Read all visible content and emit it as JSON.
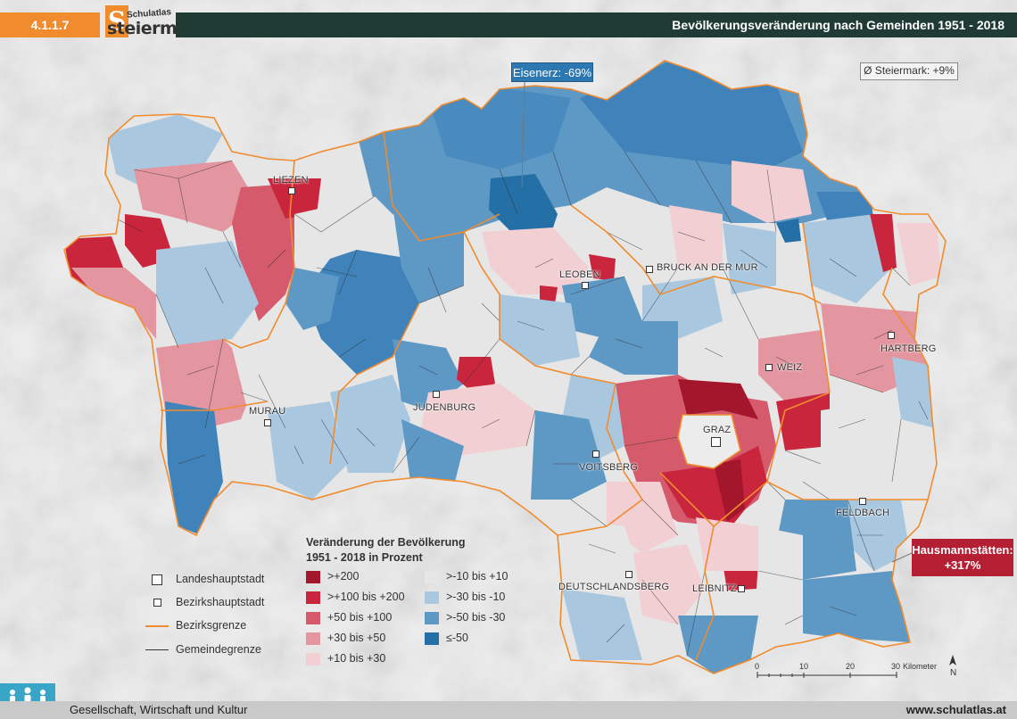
{
  "header": {
    "section_number": "4.1.1.7",
    "logo_small": "Schulatlas",
    "logo_large": "steiermark",
    "logo_letter": "S",
    "title": "Bevölkerungsveränderung nach Gemeinden 1951 - 2018"
  },
  "callouts": {
    "eisenerz": "Eisenerz: -69%",
    "average": "Ø Steiermark: +9%",
    "hausmannstaetten_name": "Hausmannstätten:",
    "hausmannstaetten_value": "+317%"
  },
  "towns": {
    "liezen": "LIEZEN",
    "leoben": "LEOBEN",
    "bruck": "BRUCK AN DER MUR",
    "hartberg": "HARTBERG",
    "weiz": "WEIZ",
    "murau": "MURAU",
    "judenburg": "JUDENBURG",
    "graz": "GRAZ",
    "voitsberg": "VOITSBERG",
    "feldbach": "FELDBACH",
    "deutschlandsberg": "DEUTSCHLANDSBERG",
    "leibnitz": "LEIBNITZ"
  },
  "legend": {
    "symbols": {
      "landeshauptstadt": "Landeshauptstadt",
      "bezirkshauptstadt": "Bezirkshauptstadt",
      "bezirksgrenze": "Bezirksgrenze",
      "gemeindegrenze": "Gemeindegrenze"
    },
    "title_line1": "Veränderung der Bevölkerung",
    "title_line2": "1951 - 2018 in Prozent",
    "classes": [
      {
        "label": ">+200",
        "color": "#a3162c"
      },
      {
        "label": ">+100 bis +200",
        "color": "#c9263d"
      },
      {
        "label": "+50 bis +100",
        "color": "#d45a6c"
      },
      {
        "label": "+30 bis +50",
        "color": "#e3969f"
      },
      {
        "label": "+10 bis +30",
        "color": "#f2cfd3"
      },
      {
        "label": ">-10 bis +10",
        "color": "#e6e6e6"
      },
      {
        "label": ">-30 bis -10",
        "color": "#a9c8e0"
      },
      {
        "label": ">-50 bis -30",
        "color": "#5e98c4"
      },
      {
        "label": "≤-50",
        "color": "#236fa6"
      }
    ]
  },
  "scale": {
    "ticks": [
      "0",
      "10",
      "20",
      "30"
    ],
    "unit": "Kilometer",
    "north": "N"
  },
  "colors": {
    "bezirksgrenze": "#f08c2e",
    "gemeindegrenze": "#333333"
  },
  "footer": {
    "category": "Gesellschaft, Wirtschaft und Kultur",
    "url": "www.schulatlas.at"
  }
}
